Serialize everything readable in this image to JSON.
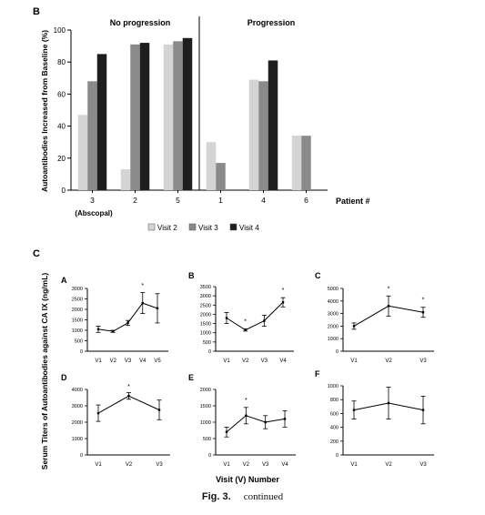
{
  "figure_caption": {
    "label": "Fig. 3.",
    "text": "continued"
  },
  "panel_letters": {
    "B": "B",
    "C": "C"
  },
  "chart_data": [
    {
      "id": "B",
      "type": "bar",
      "title": "",
      "ylabel": "Autoantibodies Increased from Baseline (%)",
      "xlabel": "Patient #",
      "ylim": [
        0,
        100
      ],
      "yticks": [
        0,
        20,
        40,
        60,
        80,
        100
      ],
      "grid": false,
      "legend_position": "bottom",
      "groups": [
        {
          "label": "No progression",
          "categories": [
            "3",
            "2",
            "5"
          ]
        },
        {
          "label": "Progression",
          "categories": [
            "1",
            "4",
            "6"
          ]
        }
      ],
      "categories": [
        "3",
        "2",
        "5",
        "1",
        "4",
        "6"
      ],
      "category_sublabels": {
        "3": "(Abscopal)"
      },
      "series": [
        {
          "name": "Visit 2",
          "color": "#d4d4d4",
          "values": [
            47,
            13,
            91,
            30,
            69,
            34
          ]
        },
        {
          "name": "Visit 3",
          "color": "#8a8a8a",
          "values": [
            68,
            91,
            93,
            17,
            68,
            34
          ]
        },
        {
          "name": "Visit 4",
          "color": "#1e1e1e",
          "values": [
            85,
            92,
            95,
            null,
            81,
            null
          ]
        }
      ]
    },
    {
      "id": "C",
      "type": "line",
      "ylabel": "Serum Titers of Autoantibodies against CA IX (ng/mL)",
      "xlabel": "Visit (V) Number",
      "subplots": [
        {
          "id": "A",
          "x": [
            "V1",
            "V2",
            "V3",
            "V4",
            "V5"
          ],
          "ylim": [
            0,
            3000
          ],
          "yticks": [
            0,
            500,
            1000,
            1500,
            2000,
            2500,
            3000
          ],
          "values": [
            1050,
            950,
            1350,
            2300,
            2050
          ],
          "errors": [
            150,
            50,
            120,
            500,
            700
          ],
          "significant": [
            false,
            false,
            false,
            true,
            false
          ]
        },
        {
          "id": "B",
          "x": [
            "V1",
            "V2",
            "V3",
            "V4"
          ],
          "ylim": [
            0,
            3500
          ],
          "yticks": [
            0,
            500,
            1000,
            1500,
            2000,
            2500,
            3000,
            3500
          ],
          "values": [
            1800,
            1150,
            1650,
            2650
          ],
          "errors": [
            300,
            60,
            300,
            250
          ],
          "significant": [
            false,
            true,
            false,
            true
          ]
        },
        {
          "id": "C",
          "x": [
            "V1",
            "V2",
            "V3"
          ],
          "ylim": [
            0,
            5000
          ],
          "yticks": [
            0,
            1000,
            2000,
            3000,
            4000,
            5000
          ],
          "values": [
            2000,
            3600,
            3100
          ],
          "errors": [
            250,
            800,
            400
          ],
          "significant": [
            false,
            true,
            true
          ]
        },
        {
          "id": "D",
          "x": [
            "V1",
            "V2",
            "V3"
          ],
          "ylim": [
            0,
            4000
          ],
          "yticks": [
            0,
            1000,
            2000,
            3000,
            4000
          ],
          "values": [
            2550,
            3600,
            2750
          ],
          "errors": [
            500,
            200,
            600
          ],
          "significant": [
            false,
            true,
            false
          ]
        },
        {
          "id": "E",
          "x": [
            "V1",
            "V2",
            "V3",
            "V4"
          ],
          "ylim": [
            0,
            2000
          ],
          "yticks": [
            0,
            500,
            1000,
            1500,
            2000
          ],
          "values": [
            700,
            1200,
            1000,
            1100
          ],
          "errors": [
            150,
            250,
            200,
            250
          ],
          "significant": [
            false,
            true,
            false,
            false
          ]
        },
        {
          "id": "F",
          "x": [
            "V1",
            "V2",
            "V3"
          ],
          "ylim": [
            0,
            1000
          ],
          "yticks": [
            0,
            200,
            400,
            600,
            800,
            1000
          ],
          "values": [
            650,
            750,
            650
          ],
          "errors": [
            130,
            230,
            200
          ],
          "significant": [
            false,
            false,
            false
          ]
        }
      ]
    }
  ]
}
